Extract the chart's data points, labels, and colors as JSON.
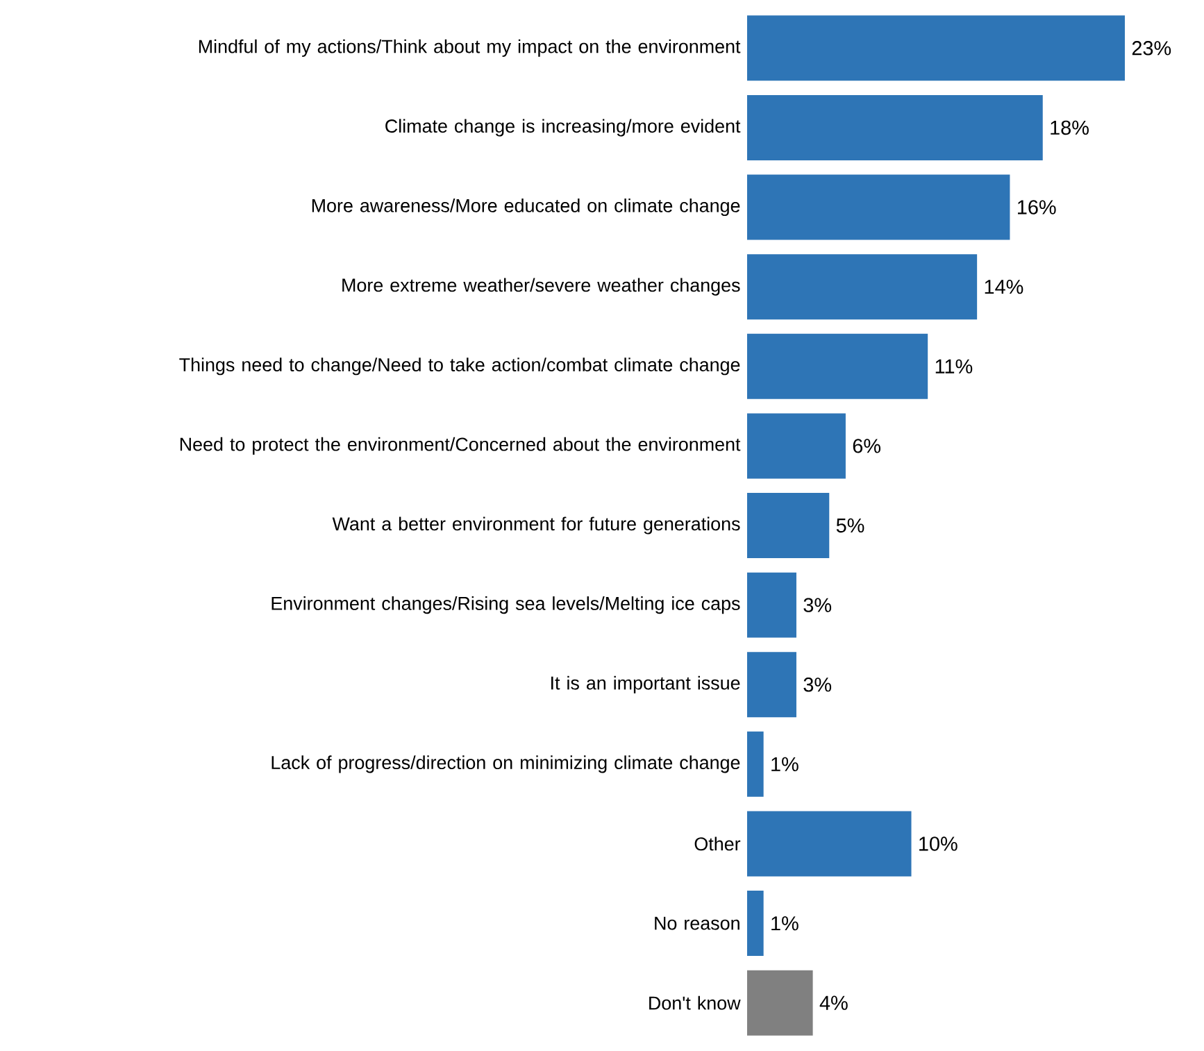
{
  "chart_data": {
    "type": "bar",
    "orientation": "horizontal",
    "categories": [
      "Mindful of my actions/Think about my impact on the environment",
      "Climate change is increasing/more evident",
      "More awareness/More educated on climate change",
      "More extreme weather/severe weather changes",
      "Things need to change/Need to take action/combat climate change",
      "Need to protect the environment/Concerned about the environment",
      "Want a better environment for future generations",
      "Environment changes/Rising sea levels/Melting ice caps",
      "It is an important issue",
      "Lack of progress/direction on minimizing climate change",
      "Other",
      "No reason",
      "Don't know"
    ],
    "values": [
      23,
      18,
      16,
      14,
      11,
      6,
      5,
      3,
      3,
      1,
      10,
      1,
      4
    ],
    "value_labels": [
      "23%",
      "18%",
      "16%",
      "14%",
      "11%",
      "6%",
      "5%",
      "3%",
      "3%",
      "1%",
      "10%",
      "1%",
      "4%"
    ],
    "colors": [
      "#2e75b6",
      "#2e75b6",
      "#2e75b6",
      "#2e75b6",
      "#2e75b6",
      "#2e75b6",
      "#2e75b6",
      "#2e75b6",
      "#2e75b6",
      "#2e75b6",
      "#2e75b6",
      "#2e75b6",
      "#808080"
    ],
    "xlim": [
      0,
      23
    ]
  }
}
